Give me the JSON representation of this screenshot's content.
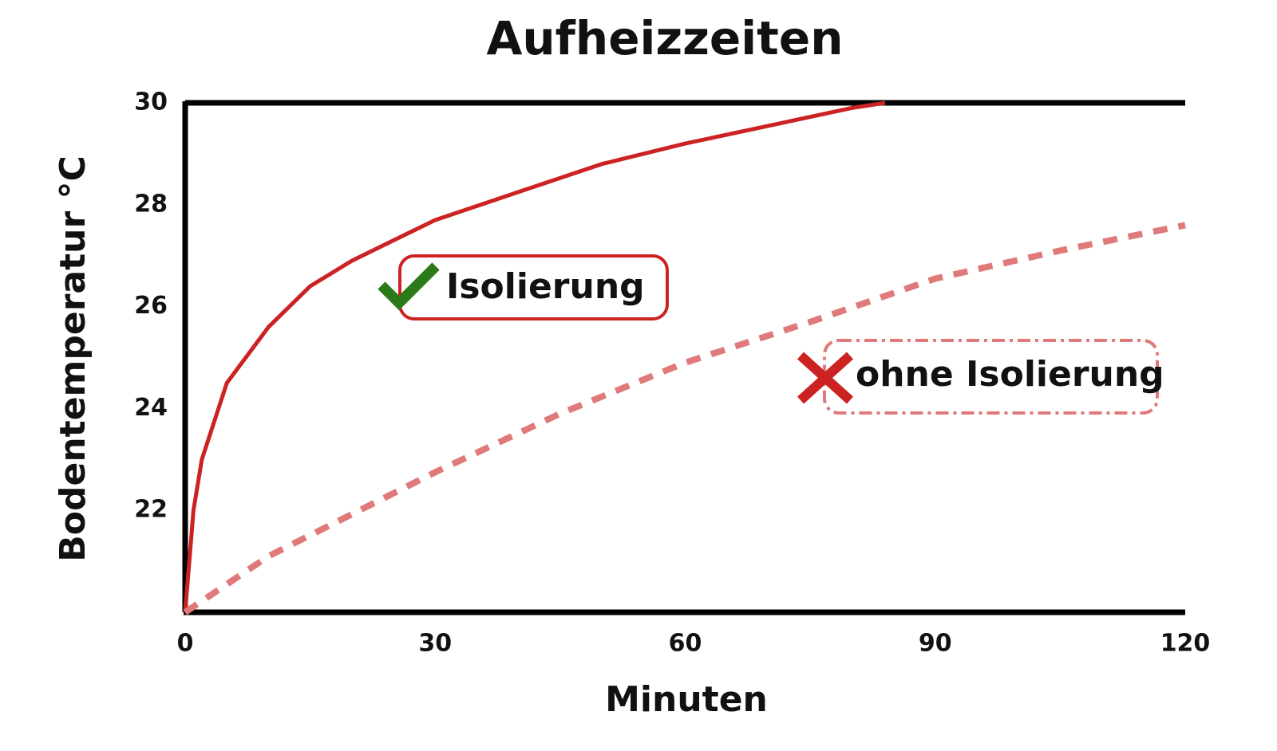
{
  "chart_data": {
    "type": "line",
    "title": "Aufheizzeiten",
    "x_label": "Minuten",
    "y_label": "Bodentemperatur °C",
    "xlim": [
      0,
      120
    ],
    "xticks": [
      0,
      30,
      60,
      90,
      120
    ],
    "ylim": [
      20,
      30
    ],
    "yticks": [
      22,
      24,
      26,
      28,
      30
    ],
    "grid": false,
    "series": [
      {
        "name": "Isolierung",
        "color": "#cc2222",
        "line_style": "solid",
        "x": [
          0,
          1,
          2,
          5,
          10,
          15,
          20,
          25,
          30,
          40,
          50,
          60,
          70,
          80,
          84
        ],
        "values": [
          20,
          22,
          23,
          24.5,
          25.6,
          26.4,
          26.9,
          27.3,
          27.7,
          28.25,
          28.8,
          29.2,
          29.55,
          29.9,
          30
        ]
      },
      {
        "name": "ohne Isolierung",
        "color": "#e07a7a",
        "line_style": "dashed",
        "x": [
          0,
          10,
          30,
          45,
          60,
          75,
          90,
          105,
          120
        ],
        "values": [
          20,
          21.1,
          22.75,
          23.9,
          24.9,
          25.7,
          26.55,
          27.1,
          27.6
        ]
      }
    ]
  }
}
